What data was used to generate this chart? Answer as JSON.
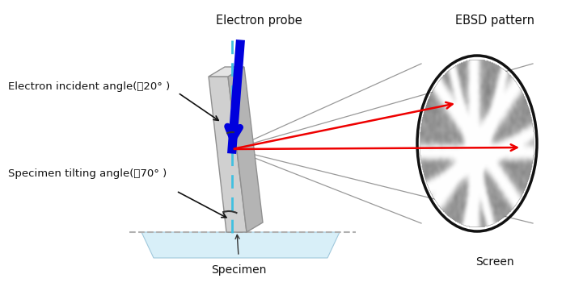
{
  "fig_width": 7.0,
  "fig_height": 3.66,
  "dpi": 100,
  "bg_color": "#ffffff",
  "title_electron_probe": "Electron probe",
  "title_ebsd_pattern": "EBSD pattern",
  "label_electron_incident": "Electron incident angle(～20° )",
  "label_specimen_tilting": "Specimen tilting angle(～70° )",
  "label_specimen": "Specimen",
  "label_screen": "Screen"
}
